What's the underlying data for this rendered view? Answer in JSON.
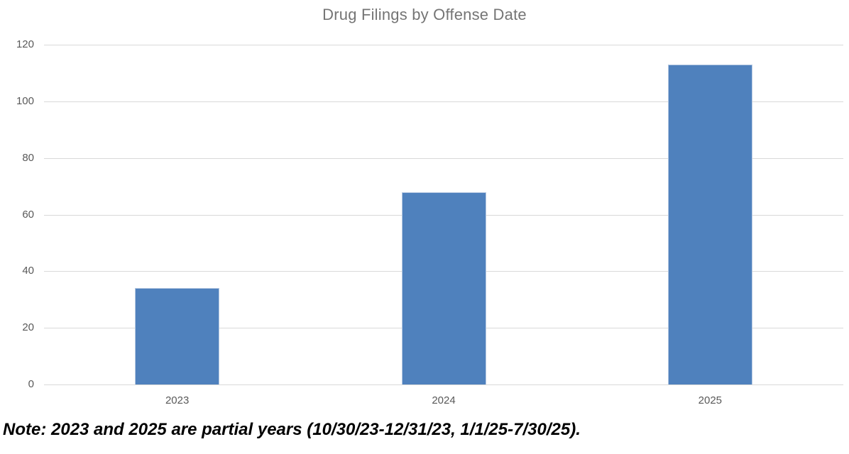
{
  "chart_data": {
    "type": "bar",
    "title": "Drug Filings by Offense Date",
    "categories": [
      "2023",
      "2024",
      "2025"
    ],
    "values": [
      34,
      68,
      113
    ],
    "xlabel": "",
    "ylabel": "",
    "ylim": [
      0,
      120
    ],
    "yticks": [
      0,
      20,
      40,
      60,
      80,
      100,
      120
    ],
    "grid": "horizontal",
    "legend": "none",
    "colors": {
      "bar_fill": "#4f81bd",
      "bar_border": "#b6c9e2",
      "gridline": "#d9d9d9",
      "tick_label": "#595959",
      "title": "#757575"
    }
  },
  "note": "Note: 2023 and 2025 are partial years (10/30/23-12/31/23, 1/1/25-7/30/25)."
}
